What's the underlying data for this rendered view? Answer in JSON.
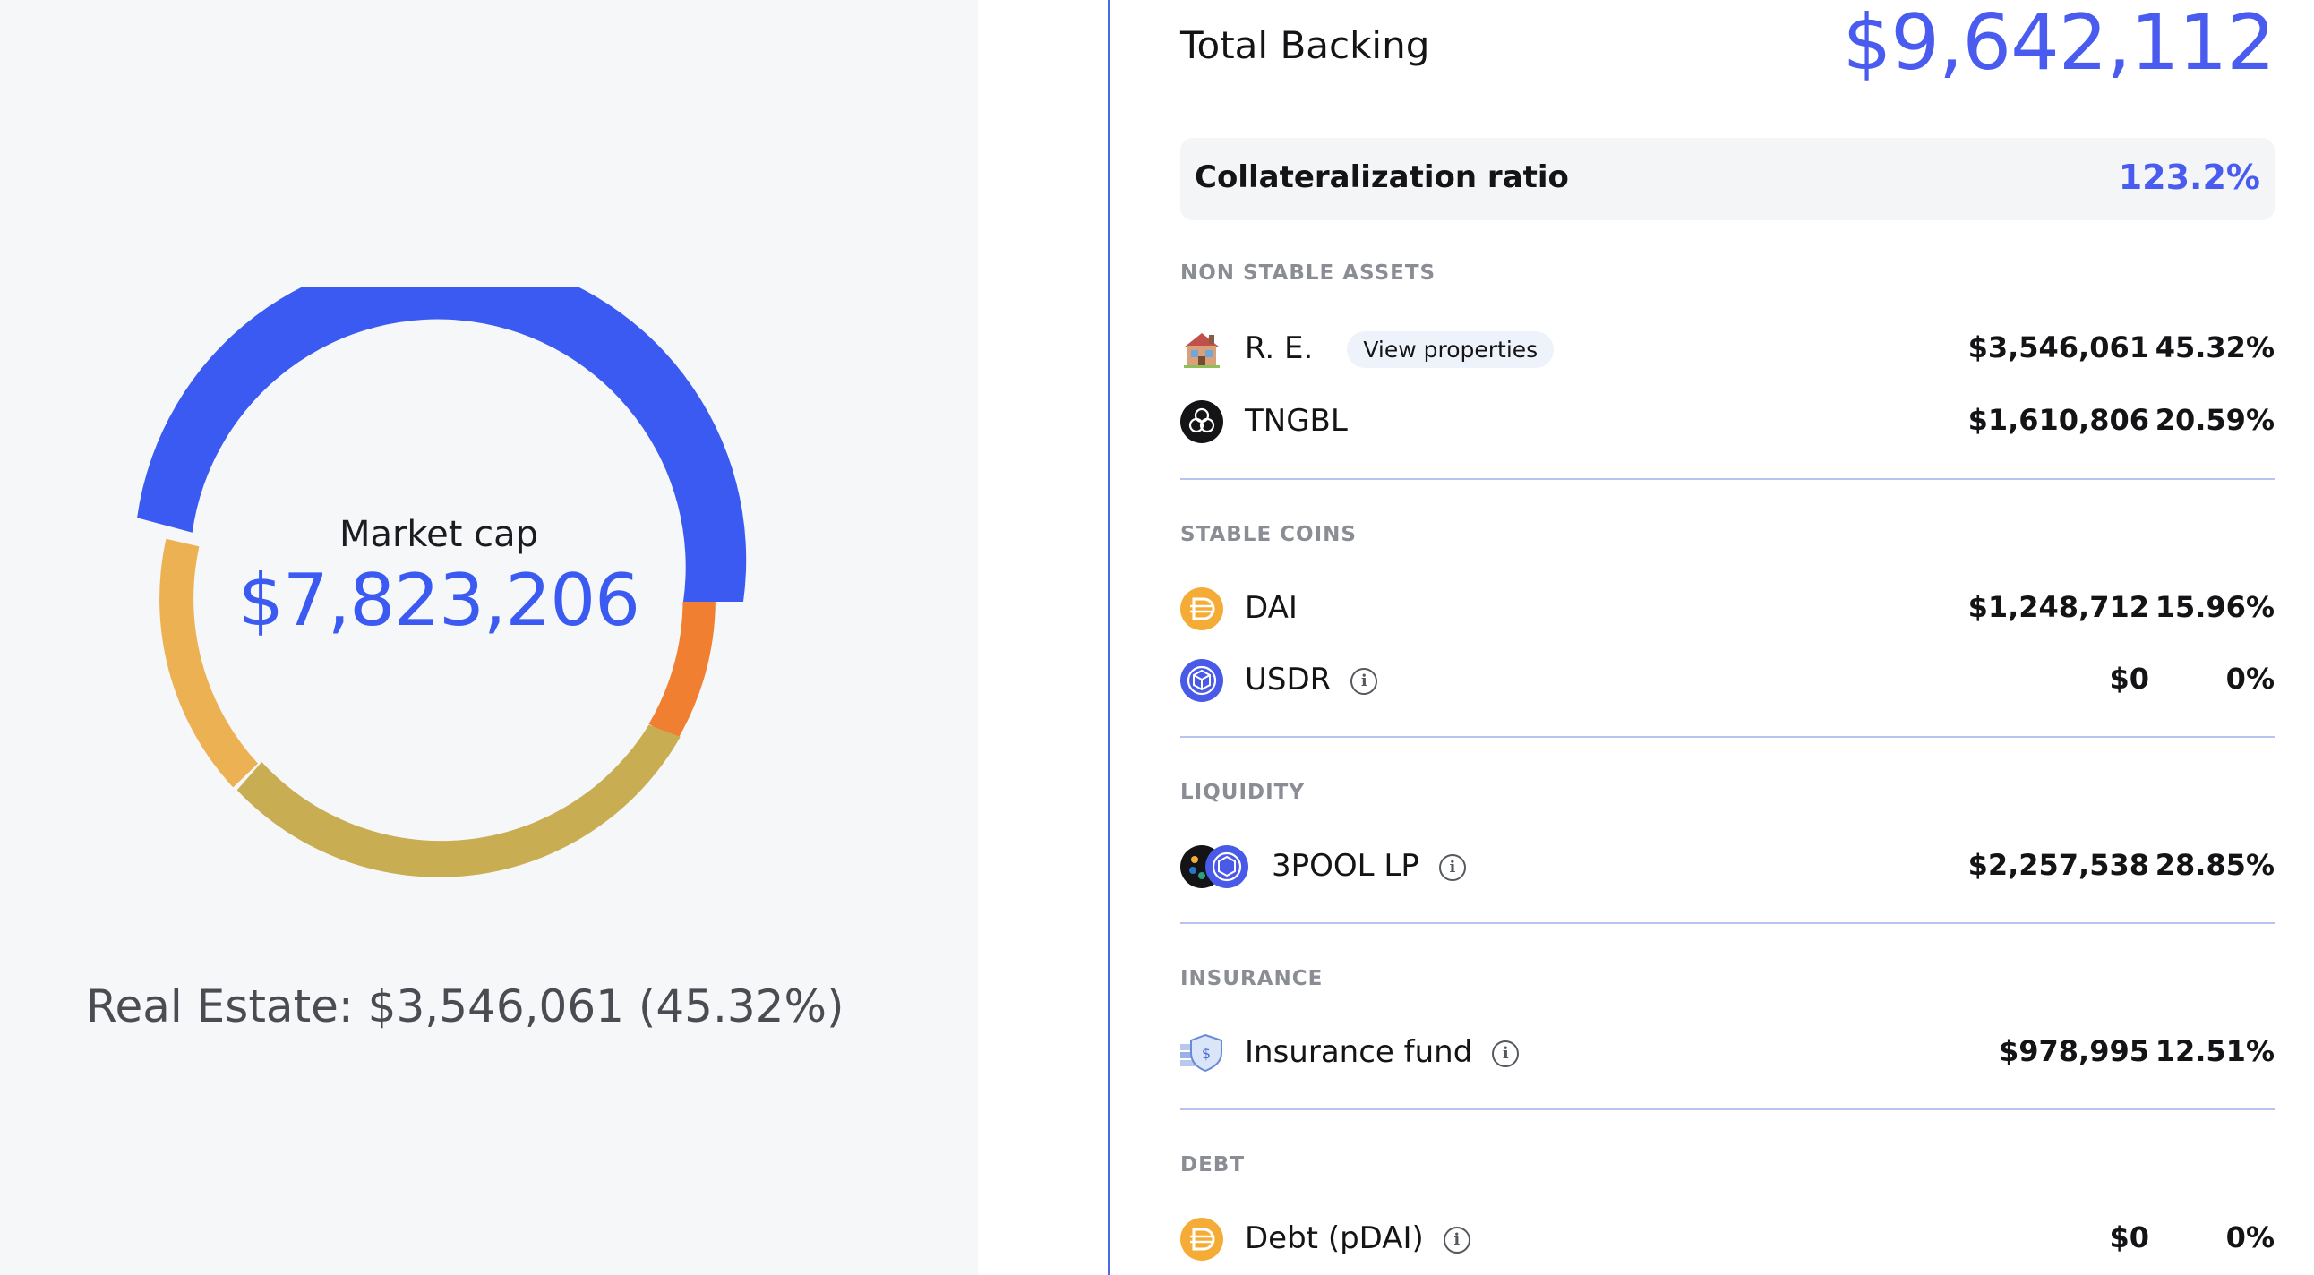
{
  "left": {
    "market_cap_label": "Market cap",
    "market_cap_value": "$7,823,206",
    "hover_line": "Real Estate: $3,546,061 (45.32%)",
    "donut": {
      "segments": [
        {
          "label": "Real Estate",
          "value": 45.32,
          "color": "#3a5af2"
        },
        {
          "label": "Orange",
          "value": 7.7,
          "color": "#f07f32"
        },
        {
          "label": "Gold",
          "value": 27.7,
          "color": "#c8ad52"
        },
        {
          "label": "Yellow-orange",
          "value": 19.3,
          "color": "#ecb152"
        }
      ]
    }
  },
  "right": {
    "total_backing_label": "Total Backing",
    "total_backing_value": "$9,642,112",
    "collateral_label": "Collateralization ratio",
    "collateral_value": "123.2%",
    "sections": {
      "non_stable": {
        "title": "NON STABLE ASSETS",
        "items": [
          {
            "name": "R. E.",
            "button": "View properties",
            "amount": "$3,546,061",
            "pct": "45.32%",
            "icon": "house-icon"
          },
          {
            "name": "TNGBL",
            "amount": "$1,610,806",
            "pct": "20.59%",
            "icon": "tngbl-icon"
          }
        ]
      },
      "stable": {
        "title": "STABLE COINS",
        "items": [
          {
            "name": "DAI",
            "amount": "$1,248,712",
            "pct": "15.96%",
            "icon": "dai-icon"
          },
          {
            "name": "USDR",
            "amount": "$0",
            "pct": "0%",
            "icon": "usdr-icon"
          }
        ]
      },
      "liquidity": {
        "title": "LIQUIDITY",
        "items": [
          {
            "name": "3POOL LP",
            "amount": "$2,257,538",
            "pct": "28.85%",
            "icon": "3pool-lp-icon"
          }
        ]
      },
      "insurance": {
        "title": "INSURANCE",
        "items": [
          {
            "name": "Insurance fund",
            "amount": "$978,995",
            "pct": "12.51%",
            "icon": "insurance-shield-icon"
          }
        ]
      },
      "debt": {
        "title": "DEBT",
        "items": [
          {
            "name": "Debt (pDAI)",
            "amount": "$0",
            "pct": "0%",
            "icon": "pdai-icon"
          }
        ]
      }
    }
  },
  "colors": {
    "accent": "#3a5af2",
    "divider": "#4b6ae8",
    "dai": "#f5ac37",
    "usdr": "#4a5ae8"
  }
}
